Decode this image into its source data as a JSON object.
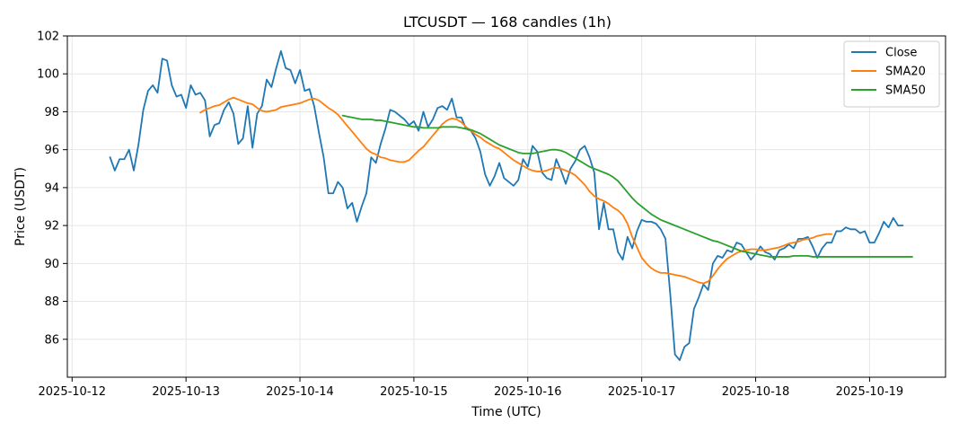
{
  "chart_data": {
    "type": "line",
    "title": "LTCUSDT — 168 candles (1h)",
    "xlabel": "Time (UTC)",
    "ylabel": "Price (USDT)",
    "x_start": "2025-10-12 08:00",
    "x_step_hours": 1,
    "xlim": [
      "2025-10-11 23:00",
      "2025-10-19 16:00"
    ],
    "ylim": [
      84.0,
      102.0
    ],
    "x_ticks": [
      "2025-10-12",
      "2025-10-13",
      "2025-10-14",
      "2025-10-15",
      "2025-10-16",
      "2025-10-17",
      "2025-10-18",
      "2025-10-19"
    ],
    "y_ticks": [
      86,
      88,
      90,
      92,
      94,
      96,
      98,
      100,
      102
    ],
    "grid": true,
    "legend_position": "top-right",
    "series": [
      {
        "name": "Close",
        "color": "#1f77b4",
        "values": [
          95.6,
          94.9,
          95.5,
          95.5,
          96.0,
          94.9,
          96.3,
          98.1,
          99.1,
          99.4,
          99.0,
          100.8,
          100.7,
          99.4,
          98.8,
          98.9,
          98.2,
          99.4,
          98.9,
          99.0,
          98.6,
          96.7,
          97.3,
          97.4,
          98.1,
          98.5,
          97.9,
          96.3,
          96.6,
          98.3,
          96.1,
          97.9,
          98.3,
          99.7,
          99.3,
          100.3,
          101.2,
          100.3,
          100.2,
          99.5,
          100.2,
          99.1,
          99.2,
          98.3,
          96.9,
          95.6,
          93.7,
          93.7,
          94.3,
          94.0,
          92.9,
          93.2,
          92.2,
          93.0,
          93.7,
          95.6,
          95.3,
          96.3,
          97.1,
          98.1,
          98.0,
          97.8,
          97.6,
          97.3,
          97.5,
          97.0,
          98.0,
          97.2,
          97.6,
          98.2,
          98.3,
          98.1,
          98.7,
          97.7,
          97.7,
          97.1,
          97.0,
          96.6,
          95.9,
          94.7,
          94.1,
          94.6,
          95.3,
          94.5,
          94.3,
          94.1,
          94.4,
          95.5,
          95.1,
          96.2,
          95.9,
          94.8,
          94.5,
          94.4,
          95.5,
          94.9,
          94.2,
          95.0,
          95.4,
          96.0,
          96.2,
          95.6,
          94.8,
          91.8,
          93.2,
          91.8,
          91.8,
          90.6,
          90.2,
          91.4,
          90.8,
          91.7,
          92.3,
          92.2,
          92.2,
          92.1,
          91.8,
          91.3,
          88.4,
          85.2,
          84.9,
          85.6,
          85.8,
          87.6,
          88.2,
          88.9,
          88.6,
          90.0,
          90.4,
          90.3,
          90.7,
          90.6,
          91.1,
          91.0,
          90.6,
          90.2,
          90.5,
          90.9,
          90.6,
          90.5,
          90.2,
          90.7,
          90.8,
          91.0,
          90.8,
          91.3,
          91.3,
          91.4,
          90.9,
          90.3,
          90.8,
          91.1,
          91.1,
          91.7,
          91.7,
          91.9,
          91.8,
          91.8,
          91.6,
          91.7,
          91.1,
          91.1,
          91.6,
          92.2,
          91.9,
          92.4,
          92.0,
          92.0
        ]
      },
      {
        "name": "SMA20",
        "color": "#ff7f0e",
        "values": [
          null,
          null,
          null,
          null,
          null,
          null,
          null,
          null,
          null,
          null,
          null,
          null,
          null,
          null,
          null,
          null,
          null,
          null,
          null,
          97.95,
          98.1,
          98.2,
          98.3,
          98.35,
          98.5,
          98.65,
          98.75,
          98.65,
          98.55,
          98.45,
          98.4,
          98.2,
          98.05,
          98.0,
          98.05,
          98.1,
          98.25,
          98.3,
          98.35,
          98.4,
          98.45,
          98.55,
          98.65,
          98.7,
          98.6,
          98.4,
          98.2,
          98.05,
          97.85,
          97.55,
          97.25,
          96.95,
          96.65,
          96.35,
          96.05,
          95.85,
          95.75,
          95.6,
          95.55,
          95.45,
          95.4,
          95.35,
          95.35,
          95.45,
          95.7,
          95.95,
          96.15,
          96.45,
          96.75,
          97.05,
          97.35,
          97.55,
          97.65,
          97.6,
          97.45,
          97.2,
          97.0,
          96.8,
          96.65,
          96.45,
          96.3,
          96.15,
          96.05,
          95.85,
          95.65,
          95.45,
          95.3,
          95.15,
          95.0,
          94.9,
          94.85,
          94.85,
          94.9,
          95.0,
          95.05,
          95.0,
          94.9,
          94.8,
          94.65,
          94.4,
          94.15,
          93.8,
          93.55,
          93.4,
          93.3,
          93.15,
          92.95,
          92.8,
          92.55,
          92.1,
          91.4,
          90.85,
          90.3,
          90.0,
          89.75,
          89.6,
          89.5,
          89.5,
          89.45,
          89.4,
          89.35,
          89.3,
          89.2,
          89.1,
          89.0,
          88.95,
          89.05,
          89.35,
          89.7,
          90.0,
          90.25,
          90.4,
          90.55,
          90.65,
          90.7,
          90.75,
          90.75,
          90.7,
          90.7,
          90.75,
          90.8,
          90.85,
          90.95,
          91.05,
          91.1,
          91.15,
          91.25,
          91.3,
          91.35,
          91.45,
          91.5,
          91.55,
          91.55
        ]
      },
      {
        "name": "SMA50",
        "color": "#2ca02c",
        "values": [
          null,
          null,
          null,
          null,
          null,
          null,
          null,
          null,
          null,
          null,
          null,
          null,
          null,
          null,
          null,
          null,
          null,
          null,
          null,
          null,
          null,
          null,
          null,
          null,
          null,
          null,
          null,
          null,
          null,
          null,
          null,
          null,
          null,
          null,
          null,
          null,
          null,
          null,
          null,
          null,
          null,
          null,
          null,
          null,
          null,
          null,
          null,
          null,
          null,
          97.8,
          97.75,
          97.7,
          97.65,
          97.6,
          97.6,
          97.6,
          97.55,
          97.55,
          97.5,
          97.45,
          97.4,
          97.35,
          97.3,
          97.25,
          97.2,
          97.2,
          97.15,
          97.15,
          97.15,
          97.15,
          97.2,
          97.2,
          97.2,
          97.2,
          97.15,
          97.1,
          97.05,
          96.95,
          96.85,
          96.7,
          96.55,
          96.4,
          96.25,
          96.15,
          96.05,
          95.95,
          95.85,
          95.8,
          95.8,
          95.8,
          95.85,
          95.9,
          95.95,
          96.0,
          96.0,
          95.95,
          95.85,
          95.7,
          95.55,
          95.4,
          95.25,
          95.1,
          95.0,
          94.9,
          94.8,
          94.7,
          94.55,
          94.35,
          94.05,
          93.75,
          93.45,
          93.2,
          93.0,
          92.8,
          92.6,
          92.45,
          92.3,
          92.2,
          92.1,
          92.0,
          91.9,
          91.8,
          91.7,
          91.6,
          91.5,
          91.4,
          91.3,
          91.2,
          91.15,
          91.05,
          90.95,
          90.85,
          90.75,
          90.65,
          90.6,
          90.55,
          90.5,
          90.45,
          90.4,
          90.35,
          90.35,
          90.35,
          90.35,
          90.35,
          90.4,
          90.4,
          90.4,
          90.4,
          90.35,
          90.35,
          90.35,
          90.35,
          90.35,
          90.35,
          90.35,
          90.35,
          90.35,
          90.35,
          90.35,
          90.35,
          90.35,
          90.35,
          90.35,
          90.35,
          90.35,
          90.35,
          90.35,
          90.35,
          90.35,
          90.35
        ]
      }
    ]
  }
}
